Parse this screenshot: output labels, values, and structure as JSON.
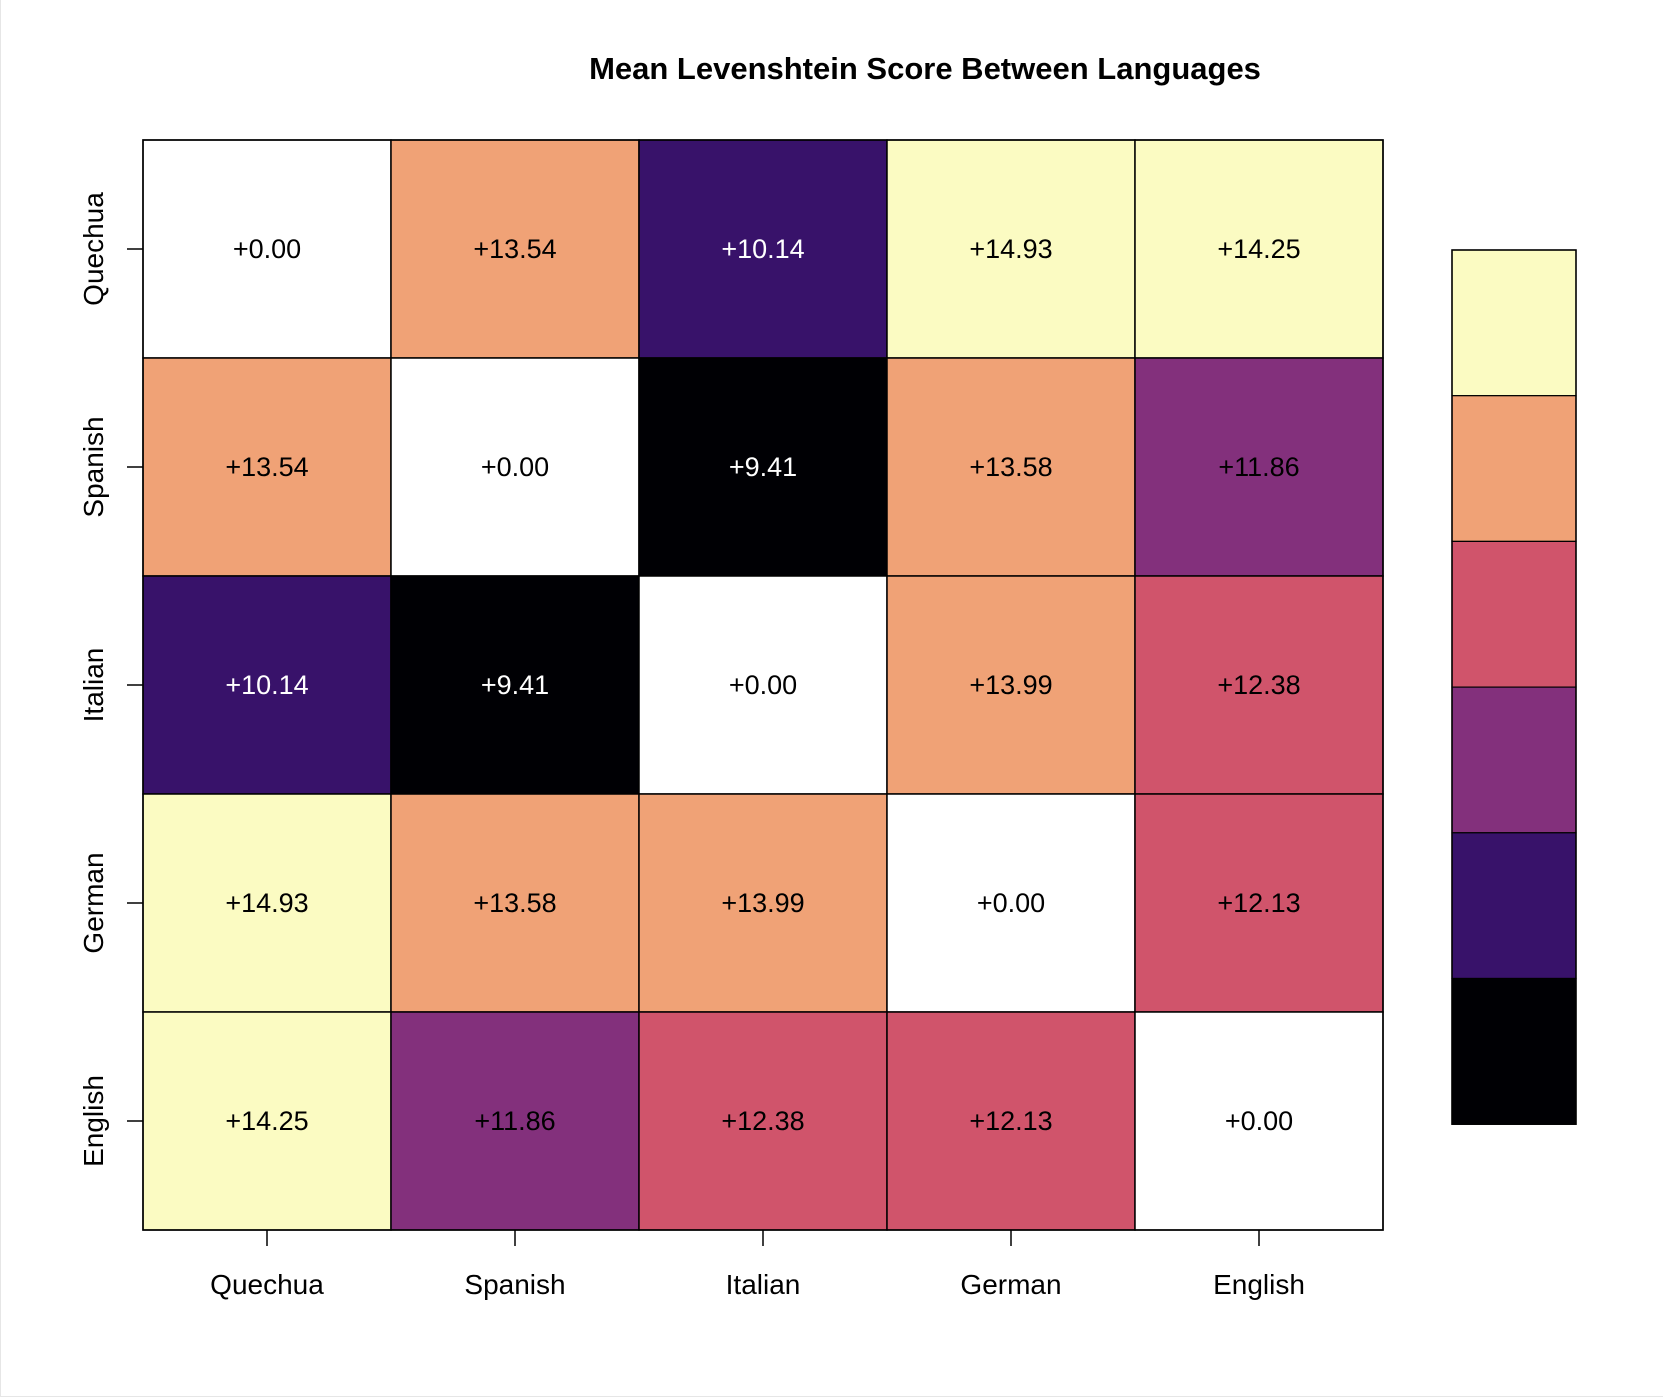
{
  "chart_data": {
    "type": "heatmap",
    "title": "Mean Levenshtein Score Between Languages",
    "xlabel": "",
    "ylabel": "",
    "x_categories": [
      "Quechua",
      "Spanish",
      "Italian",
      "German",
      "English"
    ],
    "y_categories": [
      "Quechua",
      "Spanish",
      "Italian",
      "German",
      "English"
    ],
    "values": [
      [
        0.0,
        13.54,
        10.14,
        14.93,
        14.25
      ],
      [
        13.54,
        0.0,
        9.41,
        13.58,
        11.86
      ],
      [
        10.14,
        9.41,
        0.0,
        13.99,
        12.38
      ],
      [
        14.93,
        13.58,
        13.99,
        0.0,
        12.13
      ],
      [
        14.25,
        11.86,
        12.38,
        12.13,
        0.0
      ]
    ],
    "value_labels": [
      [
        "+0.00",
        "+13.54",
        "+10.14",
        "+14.93",
        "+14.25"
      ],
      [
        "+13.54",
        "+0.00",
        "+9.41",
        "+13.58",
        "+11.86"
      ],
      [
        "+10.14",
        "+9.41",
        "+0.00",
        "+13.99",
        "+12.38"
      ],
      [
        "+14.93",
        "+13.58",
        "+13.99",
        "+0.00",
        "+12.13"
      ],
      [
        "+14.25",
        "+11.86",
        "+12.38",
        "+12.13",
        "+0.00"
      ]
    ],
    "diagonal_color": "#ffffff",
    "color_bins": [
      {
        "min": 9.0,
        "max": 10.0,
        "color": "#000004"
      },
      {
        "min": 10.0,
        "max": 11.0,
        "color": "#38126a"
      },
      {
        "min": 11.0,
        "max": 12.0,
        "color": "#83307c"
      },
      {
        "min": 12.0,
        "max": 13.0,
        "color": "#d0546b"
      },
      {
        "min": 13.0,
        "max": 14.0,
        "color": "#f0a276"
      },
      {
        "min": 14.0,
        "max": 15.0,
        "color": "#fbfbc2"
      }
    ],
    "legend_position": "right",
    "legend_tick_labels": false,
    "grid": true
  }
}
